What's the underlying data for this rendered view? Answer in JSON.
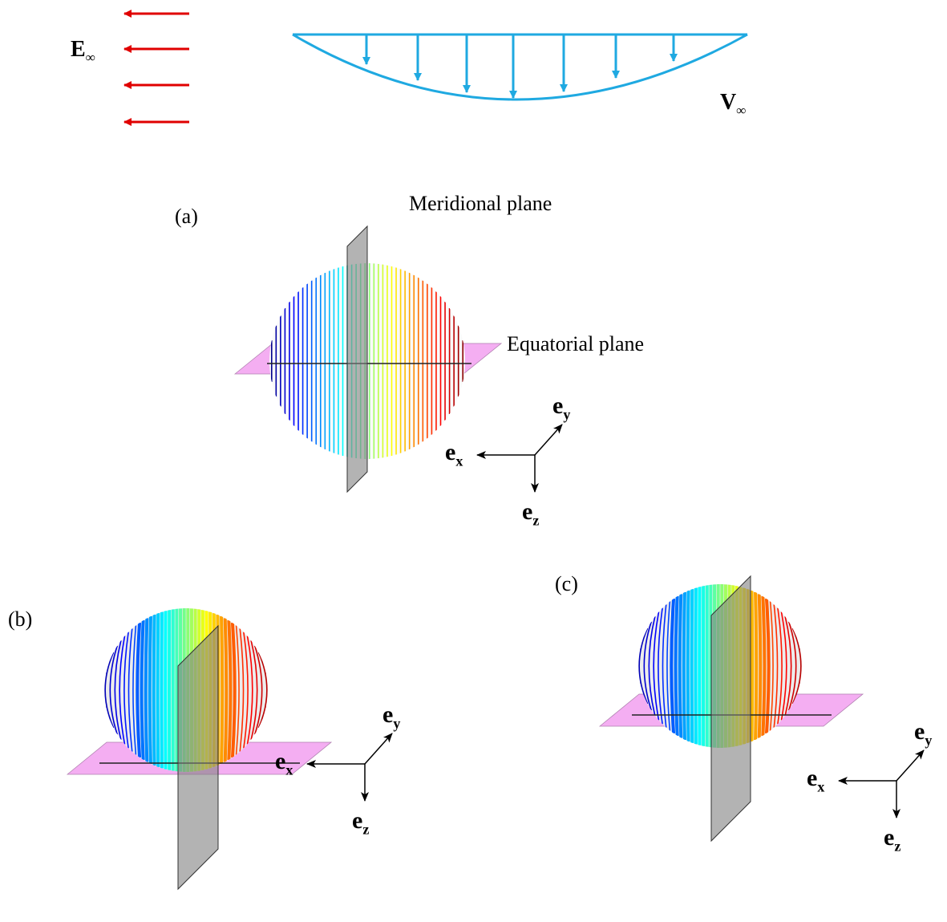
{
  "flow": {
    "field": {
      "symbol": "E",
      "subscript": "∞"
    },
    "velocity": {
      "symbol": "V",
      "subscript": "∞"
    }
  },
  "panels": [
    {
      "label": "(a)",
      "meridional_label": "Meridional plane",
      "equatorial_label": "Equatorial plane",
      "axes": {
        "x": {
          "symbol": "e",
          "subscript": "x"
        },
        "y": {
          "symbol": "e",
          "subscript": "y"
        },
        "z": {
          "symbol": "e",
          "subscript": "z"
        }
      }
    },
    {
      "label": "(b)",
      "axes": {
        "x": {
          "symbol": "e",
          "subscript": "x"
        },
        "y": {
          "symbol": "e",
          "subscript": "y"
        },
        "z": {
          "symbol": "e",
          "subscript": "z"
        }
      }
    },
    {
      "label": "(c)",
      "axes": {
        "x": {
          "symbol": "e",
          "subscript": "x"
        },
        "y": {
          "symbol": "e",
          "subscript": "y"
        },
        "z": {
          "symbol": "e",
          "subscript": "z"
        }
      }
    }
  ]
}
